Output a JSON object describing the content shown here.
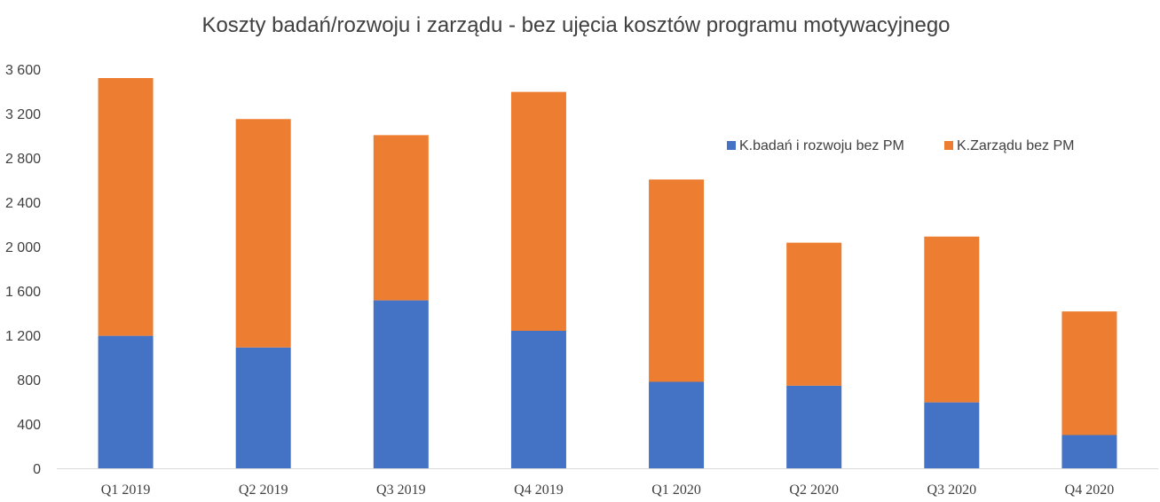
{
  "chart_data": {
    "type": "bar",
    "stacked": true,
    "title": "Koszty badań/rozwoju i zarządu - bez ujęcia kosztów programu motywacyjnego",
    "categories": [
      "Q1 2019",
      "Q2 2019",
      "Q3 2019",
      "Q4 2019",
      "Q1 2020",
      "Q2 2020",
      "Q3 2020",
      "Q4 2020"
    ],
    "series": [
      {
        "name": "K.badań i rozwoju bez PM",
        "color": "#4472C4",
        "values": [
          1195,
          1090,
          1515,
          1240,
          780,
          745,
          595,
          300
        ]
      },
      {
        "name": "K.Zarządu bez PM",
        "color": "#ED7D31",
        "values": [
          2325,
          2060,
          1490,
          2155,
          1825,
          1290,
          1495,
          1115
        ]
      }
    ],
    "ylim": [
      0,
      3600
    ],
    "yticks": [
      0,
      400,
      800,
      1200,
      1600,
      2000,
      2400,
      2800,
      3200,
      3600
    ],
    "ytick_labels": [
      "0",
      "400",
      "800",
      "1 200",
      "1 600",
      "2 000",
      "2 400",
      "2 800",
      "3 200",
      "3 600"
    ],
    "grid": false,
    "legend_position": "top-right"
  }
}
